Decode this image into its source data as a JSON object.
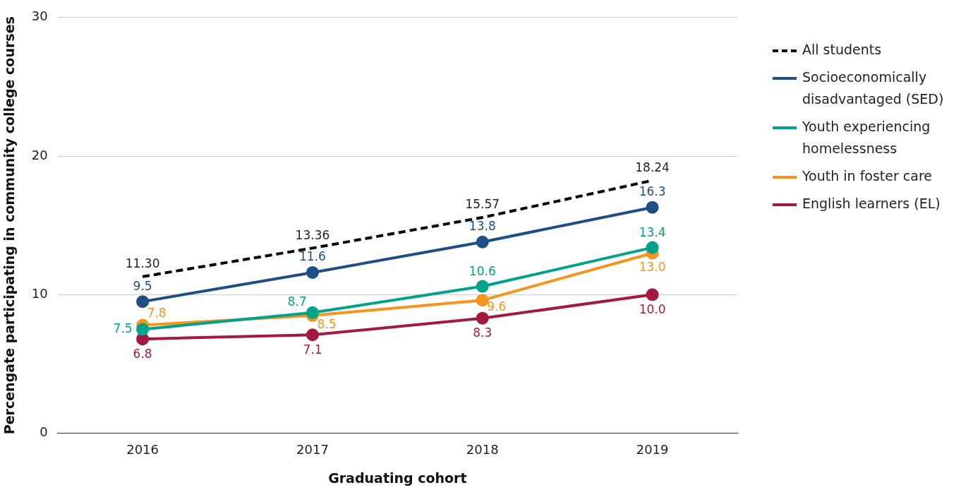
{
  "chart_data": {
    "type": "line",
    "xlabel": "Graduating cohort",
    "ylabel": "Percengate participating in community college courses",
    "categories": [
      "2016",
      "2017",
      "2018",
      "2019"
    ],
    "series": [
      {
        "name": "All students",
        "color": "#000000",
        "values": [
          11.3,
          13.36,
          15.57,
          18.24
        ],
        "value_labels": [
          "11.30",
          "13.36",
          "15.57",
          "18.24"
        ],
        "line_style": "dashed",
        "marker": "none"
      },
      {
        "name": "Socioeconomically disadvantaged (SED)",
        "color": "#1f4e87",
        "values": [
          9.5,
          11.6,
          13.8,
          16.3
        ],
        "value_labels": [
          "9.5",
          "11.6",
          "13.8",
          "16.3"
        ],
        "line_style": "solid",
        "marker": "circle"
      },
      {
        "name": "Youth experiencing homelessness",
        "color": "#00a389",
        "values": [
          7.5,
          8.7,
          10.6,
          13.4
        ],
        "value_labels": [
          "7.5",
          "8.7",
          "10.6",
          "13.4"
        ],
        "line_style": "solid",
        "marker": "circle"
      },
      {
        "name": "Youth in foster care",
        "color": "#f7941d",
        "values": [
          7.8,
          8.5,
          9.6,
          13.0
        ],
        "value_labels": [
          "7.8",
          "8.5",
          "9.6",
          "13.0"
        ],
        "line_style": "solid",
        "marker": "circle"
      },
      {
        "name": "English learners (EL)",
        "color": "#a3193f",
        "values": [
          6.8,
          7.1,
          8.3,
          10.0
        ],
        "value_labels": [
          "6.8",
          "7.1",
          "8.3",
          "10.0"
        ],
        "line_style": "solid",
        "marker": "circle"
      }
    ],
    "ylim": [
      0,
      30
    ],
    "yticks": [
      0,
      10,
      20,
      30
    ],
    "grid": "y",
    "legend": "right"
  }
}
